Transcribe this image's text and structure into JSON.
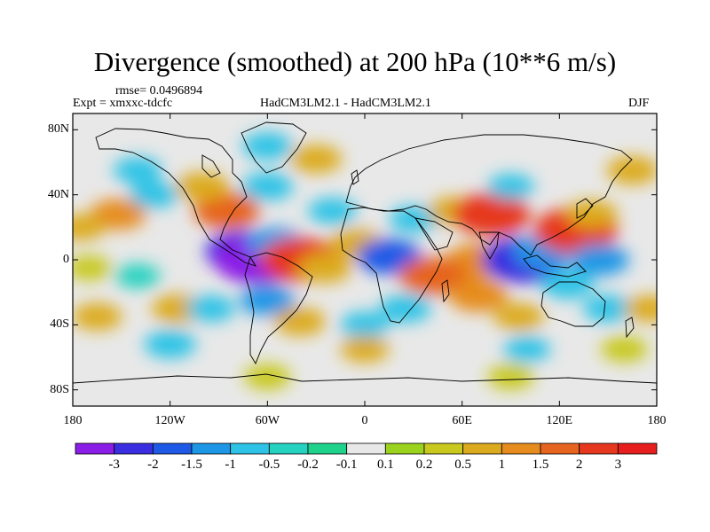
{
  "title": "Divergence (smoothed) at 200 hPa (10**6 m/s)",
  "rmse_label": "rmse= 0.0496894",
  "expt_label": "Expt = xmxxc-tdcfc",
  "models_label": "HadCM3LM2.1 - HadCM3LM2.1",
  "season_label": "DJF",
  "x_ticks": [
    {
      "label": "180",
      "lon": -180
    },
    {
      "label": "120W",
      "lon": -120
    },
    {
      "label": "60W",
      "lon": -60
    },
    {
      "label": "0",
      "lon": 0
    },
    {
      "label": "60E",
      "lon": 60
    },
    {
      "label": "120E",
      "lon": 120
    },
    {
      "label": "180",
      "lon": 180
    }
  ],
  "y_ticks": [
    {
      "label": "80N",
      "lat": 80
    },
    {
      "label": "40N",
      "lat": 40
    },
    {
      "label": "0",
      "lat": 0
    },
    {
      "label": "40S",
      "lat": -40
    },
    {
      "label": "80S",
      "lat": -80
    }
  ],
  "colorbar": {
    "colors": [
      "#8a1ee6",
      "#3a2ee0",
      "#1e5ae6",
      "#1e96e6",
      "#2ec3e6",
      "#25d2c0",
      "#1ed28c",
      "#e8e8e8",
      "#9ad21e",
      "#c8c81e",
      "#dcaa1e",
      "#e68c1e",
      "#e6641e",
      "#e6381e",
      "#e61e1e"
    ],
    "labels": [
      "-3",
      "-2",
      "-1.5",
      "-1",
      "-0.5",
      "-0.2",
      "-0.1",
      "0.1",
      "0.2",
      "0.5",
      "1",
      "1.5",
      "2",
      "3"
    ]
  },
  "field": [
    {
      "lon": -152,
      "lat": 28,
      "value": 1.1
    },
    {
      "lon": -175,
      "lat": 20,
      "value": 0.6
    },
    {
      "lon": -130,
      "lat": 40,
      "value": -0.6
    },
    {
      "lon": -140,
      "lat": 55,
      "value": -0.6
    },
    {
      "lon": -85,
      "lat": 30,
      "value": 1.7
    },
    {
      "lon": -100,
      "lat": 45,
      "value": 0.9
    },
    {
      "lon": -60,
      "lat": 45,
      "value": -0.8
    },
    {
      "lon": -60,
      "lat": 70,
      "value": -0.7
    },
    {
      "lon": -30,
      "lat": 62,
      "value": 0.8
    },
    {
      "lon": -20,
      "lat": 30,
      "value": -0.6
    },
    {
      "lon": -75,
      "lat": 5,
      "value": -2.3
    },
    {
      "lon": -65,
      "lat": 0,
      "value": -3.2
    },
    {
      "lon": -55,
      "lat": 10,
      "value": -1.2
    },
    {
      "lon": -40,
      "lat": 0,
      "value": 2.6
    },
    {
      "lon": -25,
      "lat": -5,
      "value": 1.0
    },
    {
      "lon": -5,
      "lat": 10,
      "value": 0.9
    },
    {
      "lon": 15,
      "lat": 2,
      "value": -1.6
    },
    {
      "lon": 30,
      "lat": 25,
      "value": -0.6
    },
    {
      "lon": 55,
      "lat": 30,
      "value": 0.8
    },
    {
      "lon": 78,
      "lat": 28,
      "value": 2.4
    },
    {
      "lon": 90,
      "lat": 45,
      "value": -0.5
    },
    {
      "lon": 70,
      "lat": 0,
      "value": 1.4
    },
    {
      "lon": 60,
      "lat": -5,
      "value": 1.2
    },
    {
      "lon": 42,
      "lat": -10,
      "value": 1.8
    },
    {
      "lon": 70,
      "lat": -22,
      "value": 1.3
    },
    {
      "lon": 98,
      "lat": 0,
      "value": -2.8
    },
    {
      "lon": 110,
      "lat": 5,
      "value": -1.4
    },
    {
      "lon": 130,
      "lat": 18,
      "value": 2.8
    },
    {
      "lon": 140,
      "lat": 28,
      "value": 0.8
    },
    {
      "lon": 145,
      "lat": 0,
      "value": -1.2
    },
    {
      "lon": 125,
      "lat": -15,
      "value": -0.9
    },
    {
      "lon": 165,
      "lat": 55,
      "value": 0.8
    },
    {
      "lon": -170,
      "lat": -5,
      "value": 0.4
    },
    {
      "lon": -140,
      "lat": -10,
      "value": -0.4
    },
    {
      "lon": -115,
      "lat": -30,
      "value": 0.9
    },
    {
      "lon": -165,
      "lat": -35,
      "value": 0.7
    },
    {
      "lon": -95,
      "lat": -30,
      "value": -0.6
    },
    {
      "lon": -60,
      "lat": -25,
      "value": -1.0
    },
    {
      "lon": -40,
      "lat": -38,
      "value": 0.8
    },
    {
      "lon": 0,
      "lat": -40,
      "value": -0.6
    },
    {
      "lon": 25,
      "lat": -30,
      "value": -0.8
    },
    {
      "lon": 95,
      "lat": -35,
      "value": 0.7
    },
    {
      "lon": 150,
      "lat": -30,
      "value": -0.7
    },
    {
      "lon": 175,
      "lat": -30,
      "value": 0.6
    },
    {
      "lon": -120,
      "lat": -52,
      "value": -0.8
    },
    {
      "lon": 0,
      "lat": -55,
      "value": 0.6
    },
    {
      "lon": 100,
      "lat": -55,
      "value": -0.5
    },
    {
      "lon": 160,
      "lat": -55,
      "value": 0.5
    },
    {
      "lon": -60,
      "lat": -72,
      "value": 0.5
    },
    {
      "lon": 90,
      "lat": -72,
      "value": 0.5
    }
  ]
}
